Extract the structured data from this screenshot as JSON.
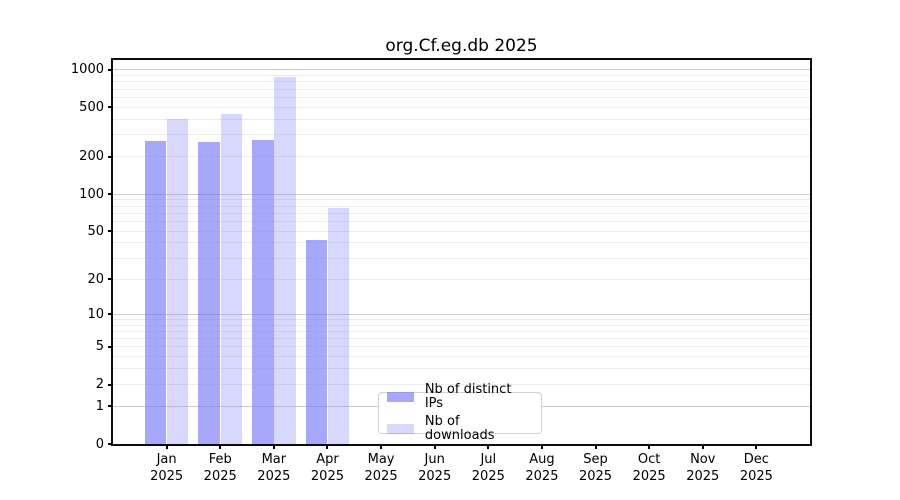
{
  "chart_data": {
    "type": "bar",
    "title": "org.Cf.eg.db 2025",
    "year_label": "2025",
    "categories": [
      "Jan",
      "Feb",
      "Mar",
      "Apr",
      "May",
      "Jun",
      "Jul",
      "Aug",
      "Sep",
      "Oct",
      "Nov",
      "Dec"
    ],
    "series": [
      {
        "name": "Nb of distinct IPs",
        "color": "#7a7afa",
        "alpha": 0.66,
        "values": [
          270,
          265,
          275,
          42,
          0,
          0,
          0,
          0,
          0,
          0,
          0,
          0
        ]
      },
      {
        "name": "Nb of downloads",
        "color": "#7a7afa",
        "alpha": 0.29,
        "values": [
          405,
          440,
          870,
          77,
          0,
          0,
          0,
          0,
          0,
          0,
          0,
          0
        ]
      }
    ],
    "xlabel": "",
    "ylabel": "",
    "yscale": "log1p",
    "ylim": [
      0,
      1200
    ],
    "y_ticks": [
      1000,
      500,
      200,
      100,
      50,
      20,
      10,
      5,
      2,
      1,
      0
    ],
    "grid": {
      "on": true,
      "major_values": [
        1,
        10,
        100,
        1000
      ],
      "minor_values": [
        2,
        3,
        4,
        5,
        6,
        7,
        8,
        9,
        20,
        30,
        40,
        50,
        60,
        70,
        80,
        90,
        200,
        300,
        400,
        500,
        600,
        700,
        800,
        900
      ],
      "major_color": "#cccccc",
      "minor_color": "#ececec"
    },
    "legend_position": "inside plot, lower center"
  }
}
